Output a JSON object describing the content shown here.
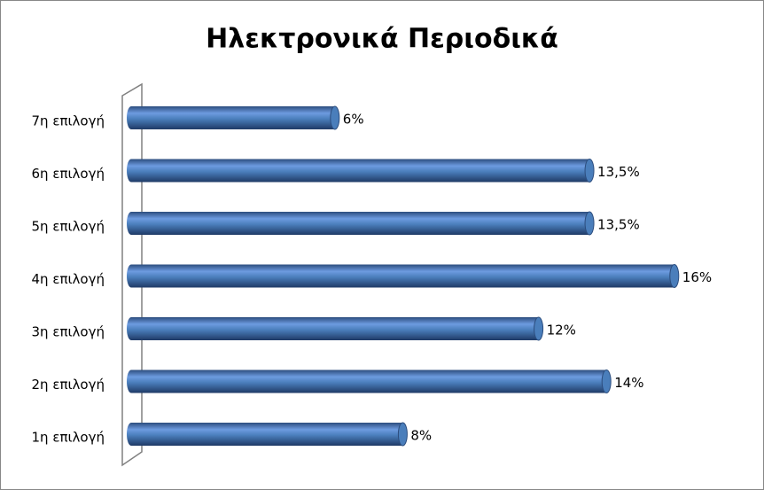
{
  "chart_data": {
    "type": "bar",
    "orientation": "horizontal",
    "title": "Ηλεκτρονικά Περιοδικά",
    "categories": [
      "1η επιλογή",
      "2η επιλογή",
      "3η επιλογή",
      "4η επιλογή",
      "5η επιλογή",
      "6η επιλογή",
      "7η επιλογή"
    ],
    "values": [
      8,
      14,
      12,
      16,
      13.5,
      13.5,
      6
    ],
    "value_labels": [
      "8%",
      "14%",
      "12%",
      "16%",
      "13,5%",
      "13,5%",
      "6%"
    ],
    "color": "#4a7ebb"
  }
}
